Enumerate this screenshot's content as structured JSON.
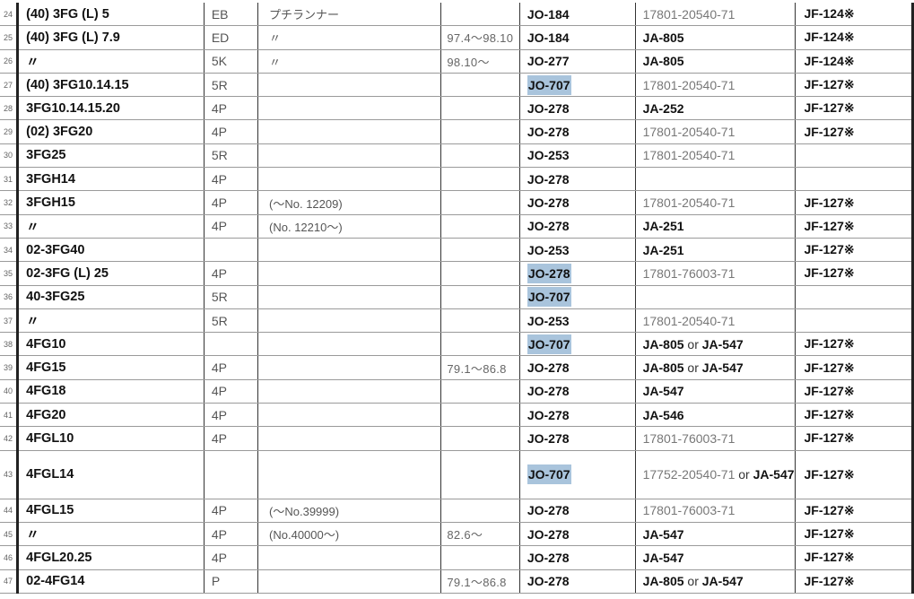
{
  "colors": {
    "highlight": "#a9c4dc"
  },
  "rows": [
    {
      "num": "24",
      "model": "(40) 3FG (L) 5",
      "code": "EB",
      "note": "プチランナー",
      "date": "",
      "jo": "JO-184",
      "part": "17801-20540-71",
      "jf": "JF-124※"
    },
    {
      "num": "25",
      "model": "(40) 3FG (L) 7.9",
      "code": "ED",
      "note": "〃",
      "date": "97.4～98.10",
      "jo": "JO-184",
      "part": "JA-805",
      "jf": "JF-124※"
    },
    {
      "num": "26",
      "model": "〃",
      "code": "5K",
      "note": "〃",
      "date": "98.10～",
      "jo": "JO-277",
      "part": "JA-805",
      "jf": "JF-124※"
    },
    {
      "num": "27",
      "model": "(40) 3FG10.14.15",
      "code": "5R",
      "note": "",
      "date": "",
      "jo": "JO-707",
      "jo_highlight": true,
      "part": "17801-20540-71",
      "jf": "JF-127※"
    },
    {
      "num": "28",
      "model": "3FG10.14.15.20",
      "code": "4P",
      "note": "",
      "date": "",
      "jo": "JO-278",
      "part": "JA-252",
      "jf": "JF-127※"
    },
    {
      "num": "29",
      "model": "(02) 3FG20",
      "code": "4P",
      "note": "",
      "date": "",
      "jo": "JO-278",
      "part": "17801-20540-71",
      "jf": "JF-127※"
    },
    {
      "num": "30",
      "model": "3FG25",
      "code": "5R",
      "note": "",
      "date": "",
      "jo": "JO-253",
      "part": "17801-20540-71",
      "jf": ""
    },
    {
      "num": "31",
      "model": "3FGH14",
      "code": "4P",
      "note": "",
      "date": "",
      "jo": "JO-278",
      "part": "",
      "jf": ""
    },
    {
      "num": "32",
      "model": "3FGH15",
      "code": "4P",
      "note": "(～No. 12209)",
      "date": "",
      "jo": "JO-278",
      "part": "17801-20540-71",
      "jf": "JF-127※"
    },
    {
      "num": "33",
      "model": "〃",
      "code": "4P",
      "note": "(No. 12210～)",
      "date": "",
      "jo": "JO-278",
      "part": "JA-251",
      "jf": "JF-127※"
    },
    {
      "num": "34",
      "model": "02-3FG40",
      "code": "",
      "note": "",
      "date": "",
      "jo": "JO-253",
      "part": "JA-251",
      "jf": "JF-127※"
    },
    {
      "num": "35",
      "model": "02-3FG (L) 25",
      "code": "4P",
      "note": "",
      "date": "",
      "jo": "JO-278",
      "jo_highlight": true,
      "part": "17801-76003-71",
      "jf": "JF-127※"
    },
    {
      "num": "36",
      "model": "40-3FG25",
      "code": "5R",
      "note": "",
      "date": "",
      "jo": "JO-707",
      "jo_highlight": true,
      "part": "",
      "jf": ""
    },
    {
      "num": "37",
      "model": "〃",
      "code": "5R",
      "note": "",
      "date": "",
      "jo": "JO-253",
      "part": "17801-20540-71",
      "jf": ""
    },
    {
      "num": "38",
      "model": "4FG10",
      "code": "",
      "note": "",
      "date": "",
      "jo": "JO-707",
      "jo_highlight": true,
      "part": "JA-805 or JA-547",
      "jf": "JF-127※"
    },
    {
      "num": "39",
      "model": "4FG15",
      "code": "4P",
      "note": "",
      "date": "79.1～86.8",
      "jo": "JO-278",
      "part": "JA-805 or JA-547",
      "jf": "JF-127※"
    },
    {
      "num": "40",
      "model": "4FG18",
      "code": "4P",
      "note": "",
      "date": "",
      "jo": "JO-278",
      "part": "JA-547",
      "jf": "JF-127※"
    },
    {
      "num": "41",
      "model": "4FG20",
      "code": "4P",
      "note": "",
      "date": "",
      "jo": "JO-278",
      "part": "JA-546",
      "jf": "JF-127※"
    },
    {
      "num": "42",
      "model": "4FGL10",
      "code": "4P",
      "note": "",
      "date": "",
      "jo": "JO-278",
      "part": "17801-76003-71",
      "jf": "JF-127※"
    },
    {
      "num": "43",
      "model": "4FGL14",
      "code": "",
      "note": "",
      "date": "",
      "jo": "JO-707",
      "jo_highlight": true,
      "part": "17752-20540-71 or JA-547",
      "jf": "JF-127※"
    },
    {
      "num": "44",
      "model": "4FGL15",
      "code": "4P",
      "note": "(～No.39999)",
      "date": "",
      "jo": "JO-278",
      "part": "17801-76003-71",
      "jf": "JF-127※"
    },
    {
      "num": "45",
      "model": "〃",
      "code": "4P",
      "note": "(No.40000～)",
      "date": "82.6～",
      "jo": "JO-278",
      "part": "JA-547",
      "jf": "JF-127※"
    },
    {
      "num": "46",
      "model": "4FGL20.25",
      "code": "4P",
      "note": "",
      "date": "",
      "jo": "JO-278",
      "part": "JA-547",
      "jf": "JF-127※"
    },
    {
      "num": "47",
      "model": "02-4FG14",
      "code": "P",
      "note": "",
      "date": "79.1～86.8",
      "jo": "JO-278",
      "part": "JA-805 or JA-547",
      "jf": "JF-127※"
    }
  ]
}
